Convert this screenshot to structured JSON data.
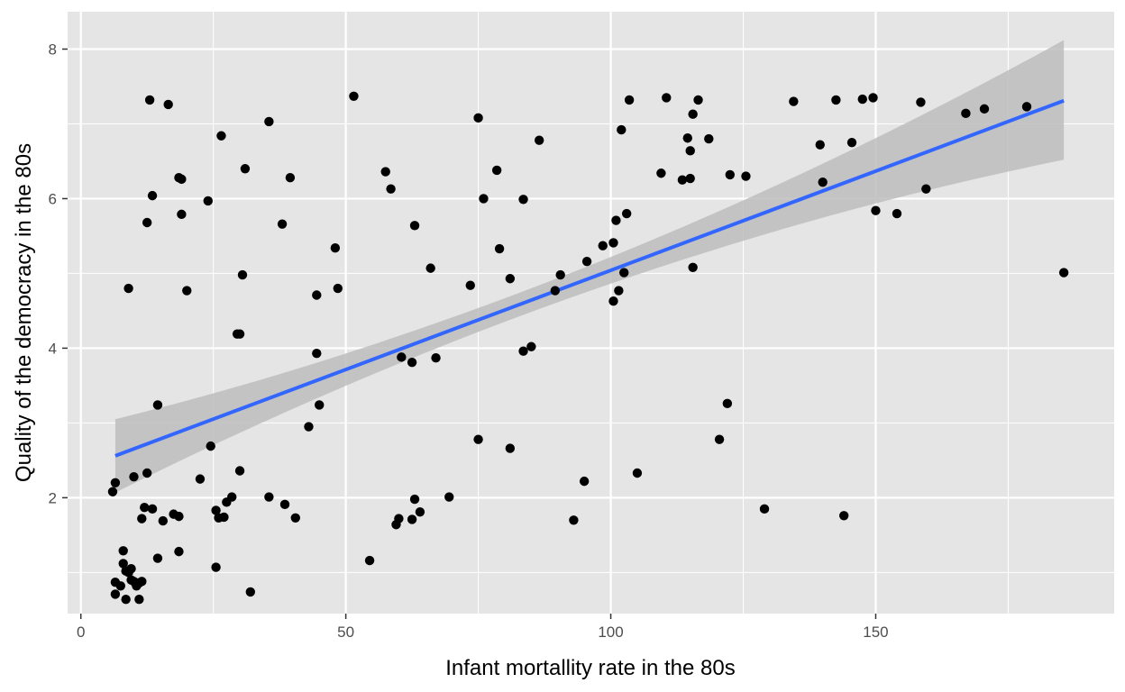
{
  "chart_data": {
    "type": "scatter",
    "title": "",
    "xlabel": "Infant mortallity rate in the 80s",
    "ylabel": "Quality of the democracy in the 80s",
    "xlim": [
      -2.5,
      195
    ],
    "ylim": [
      0.45,
      8.5
    ],
    "xticks": [
      0,
      50,
      100,
      150
    ],
    "yticks": [
      2,
      4,
      6,
      8
    ],
    "xtick_labels": [
      "0",
      "50",
      "100",
      "150"
    ],
    "ytick_labels": [
      "2",
      "4",
      "6",
      "8"
    ],
    "grid": true,
    "legend": "none",
    "colors": {
      "panel_background": "#e5e5e5",
      "grid": "#ffffff",
      "points": "#000000",
      "fit_line": "#3366ff",
      "confidence_band": "#bdbdbd"
    },
    "points": [
      [
        6,
        2.08
      ],
      [
        6.5,
        2.2
      ],
      [
        6.5,
        0.87
      ],
      [
        6.5,
        0.71
      ],
      [
        7.5,
        0.82
      ],
      [
        8,
        1.29
      ],
      [
        8,
        1.12
      ],
      [
        8.5,
        1.02
      ],
      [
        8.5,
        0.64
      ],
      [
        9,
        1.0
      ],
      [
        9,
        4.8
      ],
      [
        9.5,
        1.05
      ],
      [
        9.5,
        0.9
      ],
      [
        10,
        2.28
      ],
      [
        10,
        0.88
      ],
      [
        10.5,
        0.82
      ],
      [
        11,
        0.64
      ],
      [
        11,
        0.86
      ],
      [
        11.5,
        0.88
      ],
      [
        11.5,
        1.72
      ],
      [
        12,
        1.87
      ],
      [
        12.5,
        5.68
      ],
      [
        12.5,
        2.33
      ],
      [
        13,
        7.32
      ],
      [
        13.5,
        6.04
      ],
      [
        13.5,
        1.85
      ],
      [
        14.5,
        1.19
      ],
      [
        14.5,
        3.24
      ],
      [
        15.5,
        1.69
      ],
      [
        16.5,
        7.26
      ],
      [
        17.5,
        1.78
      ],
      [
        18.5,
        1.75
      ],
      [
        18.5,
        1.28
      ],
      [
        18.5,
        6.28
      ],
      [
        19,
        6.26
      ],
      [
        19,
        5.79
      ],
      [
        20,
        4.77
      ],
      [
        22.5,
        2.25
      ],
      [
        24,
        5.97
      ],
      [
        24.5,
        2.69
      ],
      [
        25.5,
        1.07
      ],
      [
        25.5,
        1.83
      ],
      [
        26,
        1.73
      ],
      [
        26.5,
        6.84
      ],
      [
        27,
        1.74
      ],
      [
        27.5,
        1.94
      ],
      [
        28.5,
        2.01
      ],
      [
        29.5,
        4.19
      ],
      [
        30,
        4.19
      ],
      [
        30,
        2.36
      ],
      [
        30.5,
        4.98
      ],
      [
        31,
        6.4
      ],
      [
        32,
        0.74
      ],
      [
        35.5,
        7.03
      ],
      [
        35.5,
        2.01
      ],
      [
        38,
        5.66
      ],
      [
        38.5,
        1.91
      ],
      [
        39.5,
        6.28
      ],
      [
        40.5,
        1.73
      ],
      [
        43,
        2.95
      ],
      [
        44.5,
        4.71
      ],
      [
        44.5,
        3.93
      ],
      [
        45,
        3.24
      ],
      [
        48,
        5.34
      ],
      [
        48.5,
        4.8
      ],
      [
        51.5,
        7.37
      ],
      [
        54.5,
        1.16
      ],
      [
        57.5,
        6.36
      ],
      [
        58.5,
        6.13
      ],
      [
        59.5,
        1.64
      ],
      [
        60,
        1.72
      ],
      [
        60.5,
        3.88
      ],
      [
        62.5,
        1.71
      ],
      [
        62.5,
        3.81
      ],
      [
        63,
        5.64
      ],
      [
        63,
        1.98
      ],
      [
        64,
        1.81
      ],
      [
        66,
        5.07
      ],
      [
        67,
        3.87
      ],
      [
        69.5,
        2.01
      ],
      [
        73.5,
        4.84
      ],
      [
        75,
        7.08
      ],
      [
        75,
        2.78
      ],
      [
        76,
        6.0
      ],
      [
        78.5,
        6.38
      ],
      [
        79,
        5.33
      ],
      [
        81,
        4.93
      ],
      [
        81,
        2.66
      ],
      [
        83.5,
        5.99
      ],
      [
        83.5,
        3.96
      ],
      [
        85,
        4.02
      ],
      [
        86.5,
        6.78
      ],
      [
        89.5,
        4.77
      ],
      [
        90.5,
        4.98
      ],
      [
        93,
        1.7
      ],
      [
        95,
        2.22
      ],
      [
        95.5,
        5.16
      ],
      [
        98.5,
        5.37
      ],
      [
        100.5,
        5.41
      ],
      [
        100.5,
        4.63
      ],
      [
        101,
        5.71
      ],
      [
        101.5,
        4.77
      ],
      [
        102,
        6.92
      ],
      [
        102.5,
        5.01
      ],
      [
        103,
        5.8
      ],
      [
        103.5,
        7.32
      ],
      [
        105,
        2.33
      ],
      [
        109.5,
        6.34
      ],
      [
        110.5,
        7.35
      ],
      [
        113.5,
        6.25
      ],
      [
        114.5,
        6.81
      ],
      [
        115,
        6.27
      ],
      [
        115,
        6.64
      ],
      [
        115.5,
        5.08
      ],
      [
        115.5,
        7.13
      ],
      [
        116.5,
        7.32
      ],
      [
        118.5,
        6.8
      ],
      [
        120.5,
        2.78
      ],
      [
        122,
        3.26
      ],
      [
        122.5,
        6.32
      ],
      [
        125.5,
        6.3
      ],
      [
        129,
        1.85
      ],
      [
        134.5,
        7.3
      ],
      [
        139.5,
        6.72
      ],
      [
        140,
        6.22
      ],
      [
        142.5,
        7.32
      ],
      [
        144,
        1.76
      ],
      [
        145.5,
        6.75
      ],
      [
        147.5,
        7.33
      ],
      [
        149.5,
        7.35
      ],
      [
        150,
        5.84
      ],
      [
        154,
        5.8
      ],
      [
        158.5,
        7.29
      ],
      [
        159.5,
        6.13
      ],
      [
        167,
        7.14
      ],
      [
        170.5,
        7.2
      ],
      [
        178.5,
        7.23
      ],
      [
        185.5,
        5.01
      ]
    ],
    "fit": {
      "method": "linear regression with 95% confidence band",
      "x": [
        6.5,
        185.5
      ],
      "y": [
        2.56,
        7.31
      ],
      "band_lower": [
        2.07,
        6.52
      ],
      "band_upper": [
        3.05,
        8.12
      ]
    }
  }
}
